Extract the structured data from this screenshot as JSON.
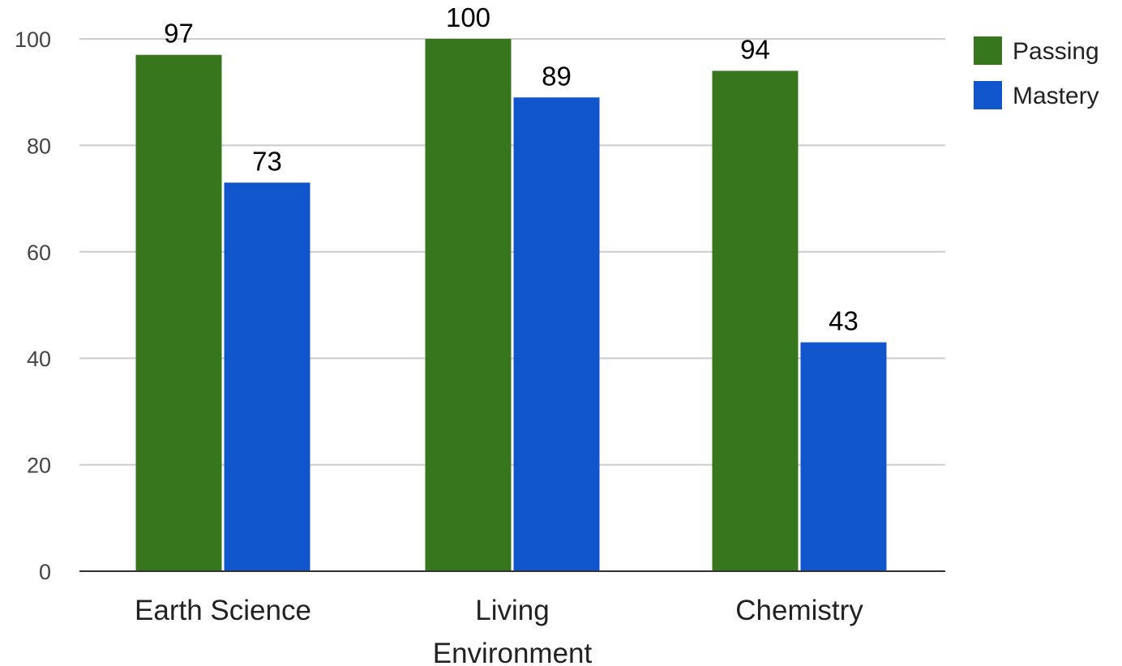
{
  "chart_data": {
    "type": "bar",
    "title": "",
    "xlabel": "",
    "ylabel": "",
    "ylim": [
      0,
      100
    ],
    "yticks": [
      0,
      20,
      40,
      60,
      80,
      100
    ],
    "grid": true,
    "legend_position": "right",
    "categories": [
      "Earth Science",
      "Living Environment",
      "Chemistry"
    ],
    "category_lines": [
      [
        "Earth Science"
      ],
      [
        "Living",
        "Environment"
      ],
      [
        "Chemistry"
      ]
    ],
    "series": [
      {
        "name": "Passing",
        "color": "#38761d",
        "values": [
          97,
          100,
          94
        ]
      },
      {
        "name": "Mastery",
        "color": "#1155cc",
        "values": [
          73,
          89,
          43
        ]
      }
    ]
  }
}
